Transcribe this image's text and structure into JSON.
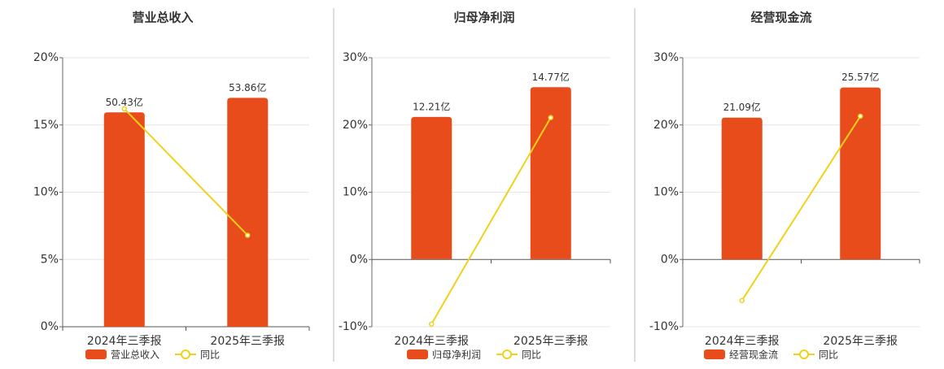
{
  "chart_data": [
    {
      "type": "bar",
      "title": "营业总收入",
      "categories": [
        "2024年三季报",
        "2025年三季报"
      ],
      "series": [
        {
          "name": "营业总收入",
          "color": "#e84c1a",
          "axis": "y2",
          "values": [
            50.43,
            53.86
          ],
          "value_labels": [
            "50.43亿",
            "53.86亿"
          ]
        },
        {
          "name": "同比",
          "type": "line",
          "color": "#f0d21c",
          "values": [
            16.2,
            6.8
          ]
        }
      ],
      "ylim": [
        0,
        20
      ],
      "yticks": [
        {
          "value": 0,
          "label": "0%"
        },
        {
          "value": 5,
          "label": "5%"
        },
        {
          "value": 10,
          "label": "10%"
        },
        {
          "value": 15,
          "label": "15%"
        },
        {
          "value": 20,
          "label": "20%"
        }
      ],
      "y2lim": [
        0,
        63.3
      ],
      "grid": true
    },
    {
      "type": "bar",
      "title": "归母净利润",
      "categories": [
        "2024年三季报",
        "2025年三季报"
      ],
      "series": [
        {
          "name": "归母净利润",
          "color": "#e84c1a",
          "axis": "y2",
          "values": [
            12.21,
            14.77
          ],
          "value_labels": [
            "12.21亿",
            "14.77亿"
          ]
        },
        {
          "name": "同比",
          "type": "line",
          "color": "#f0d21c",
          "values": [
            -9.6,
            21.1
          ]
        }
      ],
      "ylim": [
        -10,
        30
      ],
      "yticks": [
        {
          "value": -10,
          "label": "-10%"
        },
        {
          "value": 0,
          "label": "0%"
        },
        {
          "value": 10,
          "label": "10%"
        },
        {
          "value": 20,
          "label": "20%"
        },
        {
          "value": 30,
          "label": "30%"
        }
      ],
      "y2lim": [
        -5.8,
        17.3
      ],
      "grid": true
    },
    {
      "type": "bar",
      "title": "经营现金流",
      "categories": [
        "2024年三季报",
        "2025年三季报"
      ],
      "series": [
        {
          "name": "经营现金流",
          "color": "#e84c1a",
          "axis": "y2",
          "values": [
            21.09,
            25.57
          ],
          "value_labels": [
            "21.09亿",
            "25.57亿"
          ]
        },
        {
          "name": "同比",
          "type": "line",
          "color": "#f0d21c",
          "values": [
            -6.1,
            21.3
          ]
        }
      ],
      "ylim": [
        -10,
        30
      ],
      "yticks": [
        {
          "value": -10,
          "label": "-10%"
        },
        {
          "value": 0,
          "label": "0%"
        },
        {
          "value": 10,
          "label": "10%"
        },
        {
          "value": 20,
          "label": "20%"
        },
        {
          "value": 30,
          "label": "30%"
        }
      ],
      "y2lim": [
        -10,
        30
      ],
      "grid": true
    }
  ]
}
